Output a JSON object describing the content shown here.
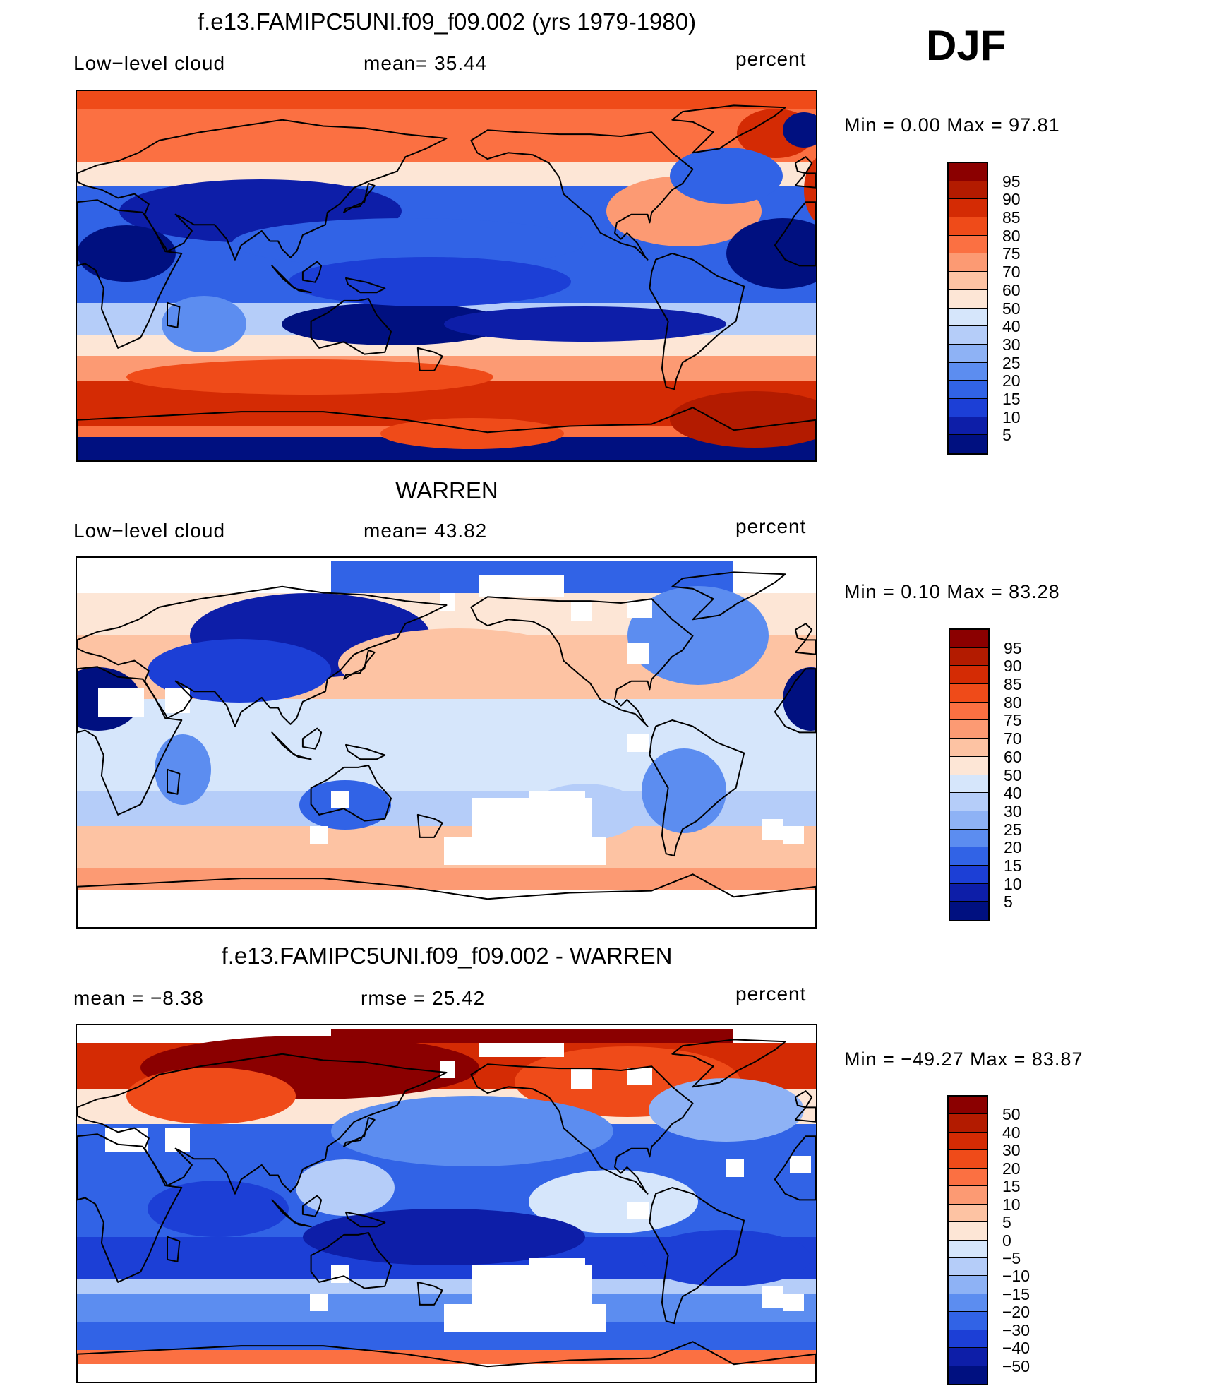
{
  "season": "DJF",
  "panels": [
    {
      "title": "f.e13.FAMIPC5UNI.f09_f09.002 (yrs 1979-1980)",
      "left_label": "Low−level cloud",
      "center_label": "mean=   35.44",
      "units": "percent",
      "minmax": "Min  =     0.00  Max  =    97.81",
      "field": "model",
      "colorbar": {
        "labels": [
          "95",
          "90",
          "85",
          "80",
          "75",
          "70",
          "60",
          "50",
          "40",
          "30",
          "25",
          "20",
          "15",
          "10",
          "5"
        ],
        "colors": [
          "#8b0000",
          "#b31b00",
          "#d42b04",
          "#ef4b19",
          "#fb7042",
          "#fc9a73",
          "#fdc3a3",
          "#fde6d6",
          "#d6e6fb",
          "#b5cdf9",
          "#8eb2f5",
          "#5c8df0",
          "#3163e6",
          "#1c3fd6",
          "#0d1ea8",
          "#001080"
        ]
      },
      "map_label": "model-low-cloud-map"
    },
    {
      "title": "WARREN",
      "left_label": "Low−level cloud",
      "center_label": "mean=   43.82",
      "units": "percent",
      "minmax": "Min  =     0.10  Max  =    83.28",
      "field": "obs",
      "colorbar": {
        "labels": [
          "95",
          "90",
          "85",
          "80",
          "75",
          "70",
          "60",
          "50",
          "40",
          "30",
          "25",
          "20",
          "15",
          "10",
          "5"
        ],
        "colors": [
          "#8b0000",
          "#b31b00",
          "#d42b04",
          "#ef4b19",
          "#fb7042",
          "#fc9a73",
          "#fdc3a3",
          "#fde6d6",
          "#d6e6fb",
          "#b5cdf9",
          "#8eb2f5",
          "#5c8df0",
          "#3163e6",
          "#1c3fd6",
          "#0d1ea8",
          "#001080"
        ]
      },
      "map_label": "warren-low-cloud-map"
    },
    {
      "title": "f.e13.FAMIPC5UNI.f09_f09.002 - WARREN",
      "left_label": "mean  =    −8.38",
      "center_label": "rmse  =    25.42",
      "units": "percent",
      "minmax": "Min  =  −49.27  Max  =    83.87",
      "field": "diff",
      "colorbar": {
        "labels": [
          "50",
          "40",
          "30",
          "20",
          "15",
          "10",
          "5",
          "0",
          "−5",
          "−10",
          "−15",
          "−20",
          "−30",
          "−40",
          "−50"
        ],
        "colors": [
          "#8b0000",
          "#b31b00",
          "#d42b04",
          "#ef4b19",
          "#fb7042",
          "#fc9a73",
          "#fdc3a3",
          "#fde6d6",
          "#d6e6fb",
          "#b5cdf9",
          "#8eb2f5",
          "#5c8df0",
          "#3163e6",
          "#1c3fd6",
          "#0d1ea8",
          "#001080"
        ]
      },
      "map_label": "difference-map"
    }
  ]
}
